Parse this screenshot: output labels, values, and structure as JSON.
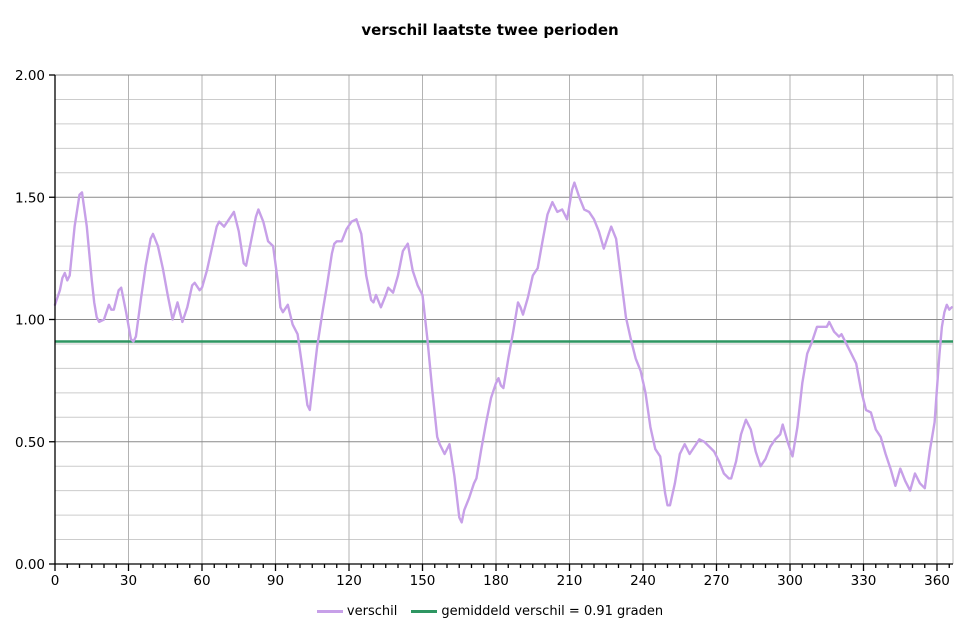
{
  "chart_data": {
    "type": "line",
    "title": "verschil laatste twee perioden",
    "xlabel": "",
    "ylabel": "",
    "x_axis": {
      "min": 0,
      "max": 366.5,
      "label_step": 30,
      "minor_tick_step": 5,
      "gridline_step": 30,
      "tick_labels": [
        "0",
        "30",
        "60",
        "90",
        "120",
        "150",
        "180",
        "210",
        "240",
        "270",
        "300",
        "330",
        "360"
      ]
    },
    "y_axis": {
      "min": 0.0,
      "max": 2.0,
      "major_step": 0.5,
      "minor_step": 0.1,
      "tick_labels": [
        "0.00",
        "0.50",
        "1.00",
        "1.50",
        "2.00"
      ]
    },
    "grid": true,
    "legend_position": "bottom",
    "colors": {
      "series": "#C7A0E8",
      "reference": "#2E9662",
      "grid_major": "#8a8a8a",
      "grid_minor": "#cccccc",
      "grid_vertical": "#b3b3b3",
      "axis": "#000000",
      "border_right": "#c0c0c0"
    },
    "series": [
      {
        "name": "verschil",
        "color": "#C7A0E8",
        "points": [
          [
            0,
            1.06
          ],
          [
            2,
            1.12
          ],
          [
            3,
            1.17
          ],
          [
            4,
            1.19
          ],
          [
            5,
            1.16
          ],
          [
            6,
            1.18
          ],
          [
            8,
            1.38
          ],
          [
            10,
            1.51
          ],
          [
            11,
            1.52
          ],
          [
            13,
            1.38
          ],
          [
            15,
            1.16
          ],
          [
            16,
            1.07
          ],
          [
            17,
            1.01
          ],
          [
            18,
            0.99
          ],
          [
            20,
            1.0
          ],
          [
            22,
            1.06
          ],
          [
            23,
            1.04
          ],
          [
            24,
            1.04
          ],
          [
            26,
            1.12
          ],
          [
            27,
            1.13
          ],
          [
            29,
            1.03
          ],
          [
            31,
            0.92
          ],
          [
            32,
            0.91
          ],
          [
            33,
            0.93
          ],
          [
            35,
            1.08
          ],
          [
            37,
            1.22
          ],
          [
            39,
            1.33
          ],
          [
            40,
            1.35
          ],
          [
            42,
            1.3
          ],
          [
            44,
            1.21
          ],
          [
            46,
            1.1
          ],
          [
            48,
            1.0
          ],
          [
            50,
            1.07
          ],
          [
            52,
            0.99
          ],
          [
            54,
            1.05
          ],
          [
            56,
            1.14
          ],
          [
            57,
            1.15
          ],
          [
            59,
            1.12
          ],
          [
            60,
            1.13
          ],
          [
            62,
            1.2
          ],
          [
            64,
            1.29
          ],
          [
            66,
            1.38
          ],
          [
            67,
            1.4
          ],
          [
            69,
            1.38
          ],
          [
            71,
            1.41
          ],
          [
            73,
            1.44
          ],
          [
            75,
            1.36
          ],
          [
            77,
            1.23
          ],
          [
            78,
            1.22
          ],
          [
            80,
            1.32
          ],
          [
            82,
            1.42
          ],
          [
            83,
            1.45
          ],
          [
            85,
            1.4
          ],
          [
            87,
            1.32
          ],
          [
            89,
            1.3
          ],
          [
            91,
            1.15
          ],
          [
            92,
            1.05
          ],
          [
            93,
            1.03
          ],
          [
            95,
            1.06
          ],
          [
            97,
            0.98
          ],
          [
            99,
            0.94
          ],
          [
            101,
            0.8
          ],
          [
            103,
            0.65
          ],
          [
            104,
            0.63
          ],
          [
            105,
            0.72
          ],
          [
            107,
            0.89
          ],
          [
            109,
            1.02
          ],
          [
            111,
            1.14
          ],
          [
            113,
            1.27
          ],
          [
            114,
            1.31
          ],
          [
            115,
            1.32
          ],
          [
            117,
            1.32
          ],
          [
            119,
            1.37
          ],
          [
            121,
            1.4
          ],
          [
            123,
            1.41
          ],
          [
            125,
            1.35
          ],
          [
            127,
            1.18
          ],
          [
            129,
            1.08
          ],
          [
            130,
            1.07
          ],
          [
            131,
            1.1
          ],
          [
            133,
            1.05
          ],
          [
            135,
            1.1
          ],
          [
            136,
            1.13
          ],
          [
            138,
            1.11
          ],
          [
            140,
            1.18
          ],
          [
            142,
            1.28
          ],
          [
            144,
            1.31
          ],
          [
            146,
            1.2
          ],
          [
            148,
            1.14
          ],
          [
            150,
            1.1
          ],
          [
            152,
            0.92
          ],
          [
            154,
            0.71
          ],
          [
            156,
            0.52
          ],
          [
            157,
            0.49
          ],
          [
            159,
            0.45
          ],
          [
            161,
            0.49
          ],
          [
            163,
            0.36
          ],
          [
            165,
            0.19
          ],
          [
            166,
            0.17
          ],
          [
            167,
            0.22
          ],
          [
            169,
            0.27
          ],
          [
            171,
            0.33
          ],
          [
            172,
            0.35
          ],
          [
            174,
            0.47
          ],
          [
            176,
            0.58
          ],
          [
            178,
            0.68
          ],
          [
            180,
            0.74
          ],
          [
            181,
            0.76
          ],
          [
            182,
            0.73
          ],
          [
            183,
            0.72
          ],
          [
            185,
            0.84
          ],
          [
            187,
            0.95
          ],
          [
            189,
            1.07
          ],
          [
            190,
            1.05
          ],
          [
            191,
            1.02
          ],
          [
            193,
            1.09
          ],
          [
            195,
            1.18
          ],
          [
            197,
            1.21
          ],
          [
            199,
            1.32
          ],
          [
            201,
            1.43
          ],
          [
            203,
            1.48
          ],
          [
            205,
            1.44
          ],
          [
            207,
            1.45
          ],
          [
            209,
            1.41
          ],
          [
            211,
            1.53
          ],
          [
            212,
            1.56
          ],
          [
            214,
            1.5
          ],
          [
            216,
            1.45
          ],
          [
            218,
            1.44
          ],
          [
            220,
            1.41
          ],
          [
            222,
            1.36
          ],
          [
            224,
            1.29
          ],
          [
            226,
            1.35
          ],
          [
            227,
            1.38
          ],
          [
            229,
            1.33
          ],
          [
            231,
            1.17
          ],
          [
            233,
            1.01
          ],
          [
            235,
            0.92
          ],
          [
            237,
            0.84
          ],
          [
            239,
            0.79
          ],
          [
            241,
            0.7
          ],
          [
            243,
            0.56
          ],
          [
            245,
            0.47
          ],
          [
            247,
            0.44
          ],
          [
            249,
            0.29
          ],
          [
            250,
            0.24
          ],
          [
            251,
            0.24
          ],
          [
            253,
            0.33
          ],
          [
            255,
            0.45
          ],
          [
            257,
            0.49
          ],
          [
            259,
            0.45
          ],
          [
            261,
            0.48
          ],
          [
            263,
            0.51
          ],
          [
            265,
            0.5
          ],
          [
            267,
            0.48
          ],
          [
            269,
            0.46
          ],
          [
            271,
            0.42
          ],
          [
            273,
            0.37
          ],
          [
            275,
            0.35
          ],
          [
            276,
            0.35
          ],
          [
            278,
            0.42
          ],
          [
            280,
            0.53
          ],
          [
            282,
            0.59
          ],
          [
            284,
            0.55
          ],
          [
            286,
            0.46
          ],
          [
            288,
            0.4
          ],
          [
            290,
            0.43
          ],
          [
            292,
            0.48
          ],
          [
            294,
            0.51
          ],
          [
            296,
            0.53
          ],
          [
            297,
            0.57
          ],
          [
            299,
            0.5
          ],
          [
            301,
            0.44
          ],
          [
            303,
            0.56
          ],
          [
            305,
            0.74
          ],
          [
            307,
            0.86
          ],
          [
            309,
            0.91
          ],
          [
            311,
            0.97
          ],
          [
            313,
            0.97
          ],
          [
            315,
            0.97
          ],
          [
            316,
            0.99
          ],
          [
            318,
            0.95
          ],
          [
            320,
            0.93
          ],
          [
            321,
            0.94
          ],
          [
            323,
            0.9
          ],
          [
            325,
            0.86
          ],
          [
            327,
            0.82
          ],
          [
            329,
            0.71
          ],
          [
            331,
            0.63
          ],
          [
            333,
            0.62
          ],
          [
            335,
            0.55
          ],
          [
            337,
            0.52
          ],
          [
            339,
            0.45
          ],
          [
            341,
            0.39
          ],
          [
            343,
            0.32
          ],
          [
            345,
            0.39
          ],
          [
            347,
            0.34
          ],
          [
            349,
            0.3
          ],
          [
            351,
            0.37
          ],
          [
            353,
            0.33
          ],
          [
            355,
            0.31
          ],
          [
            357,
            0.46
          ],
          [
            359,
            0.58
          ],
          [
            360,
            0.72
          ],
          [
            361,
            0.86
          ],
          [
            362,
            0.97
          ],
          [
            363,
            1.03
          ],
          [
            364,
            1.06
          ],
          [
            365,
            1.04
          ],
          [
            366,
            1.05
          ]
        ]
      }
    ],
    "reference_line": {
      "label": "gemiddeld verschil = 0.91 graden",
      "value": 0.91,
      "color": "#2E9662"
    }
  }
}
